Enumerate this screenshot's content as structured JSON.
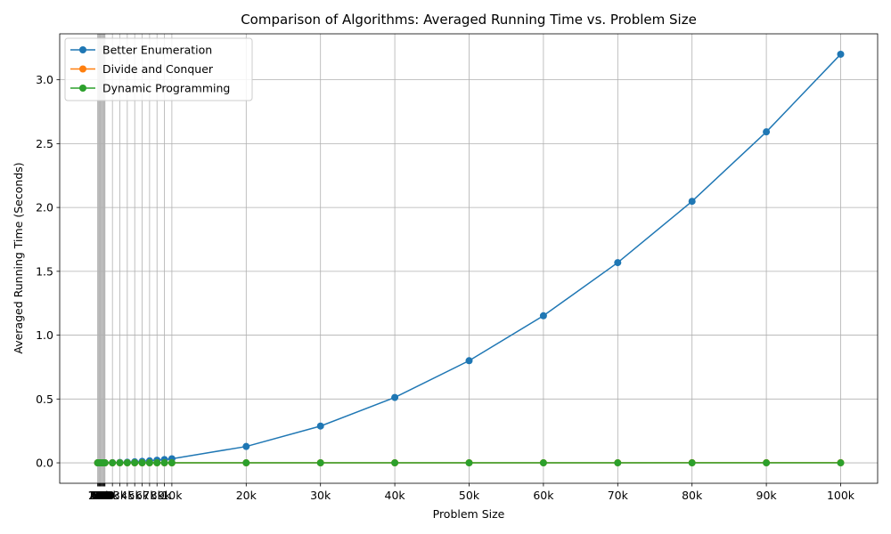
{
  "chart_data": {
    "type": "line",
    "title": "Comparison of Algorithms: Averaged Running Time vs. Problem Size",
    "xlabel": "Problem Size",
    "ylabel": "Averaged Running Time (Seconds)",
    "x": [
      10,
      50,
      100,
      200,
      300,
      400,
      500,
      600,
      700,
      800,
      900,
      1000,
      2000,
      3000,
      4000,
      5000,
      6000,
      7000,
      8000,
      9000,
      10000,
      20000,
      30000,
      40000,
      50000,
      60000,
      70000,
      80000,
      90000,
      100000
    ],
    "x_tick_labels": [
      "10",
      "50",
      "100",
      "200",
      "300",
      "400",
      "500",
      "600",
      "700",
      "800",
      "900",
      "1k",
      "2k",
      "3k",
      "4k",
      "5k",
      "6k",
      "7k",
      "8k",
      "9k",
      "10k",
      "20k",
      "30k",
      "40k",
      "50k",
      "60k",
      "70k",
      "80k",
      "90k",
      "100k"
    ],
    "ylim": [
      -0.16,
      3.36
    ],
    "yticks": [
      0.0,
      0.5,
      1.0,
      1.5,
      2.0,
      2.5,
      3.0
    ],
    "ytick_labels": [
      "0.0",
      "0.5",
      "1.0",
      "1.5",
      "2.0",
      "2.5",
      "3.0"
    ],
    "grid": true,
    "legend_position": "top-left",
    "series": [
      {
        "name": "Better Enumeration",
        "color": "#1f77b4",
        "values": [
          0,
          0,
          0,
          0,
          0,
          0,
          0,
          0,
          0,
          0,
          0,
          0.0003,
          0.0013,
          0.0029,
          0.0051,
          0.008,
          0.0115,
          0.0157,
          0.0205,
          0.026,
          0.032,
          0.128,
          0.288,
          0.512,
          0.8,
          1.152,
          1.568,
          2.048,
          2.592,
          3.2
        ]
      },
      {
        "name": "Divide and Conquer",
        "color": "#ff7f0e",
        "values": [
          0,
          0,
          0,
          0,
          0,
          0,
          0,
          0,
          0,
          0,
          0,
          0,
          0,
          0,
          0,
          0,
          0,
          0,
          0,
          0,
          0.0001,
          0.0002,
          0.0003,
          0.0004,
          0.0005,
          0.0006,
          0.0007,
          0.0008,
          0.0009,
          0.001
        ]
      },
      {
        "name": "Dynamic Programming",
        "color": "#2ca02c",
        "values": [
          0,
          0,
          0,
          0,
          0,
          0,
          0,
          0,
          0,
          0,
          0,
          0,
          0,
          0,
          0,
          0,
          0,
          0,
          0,
          0,
          0,
          0,
          0,
          0,
          0,
          0,
          0,
          0,
          0,
          0
        ]
      }
    ]
  }
}
